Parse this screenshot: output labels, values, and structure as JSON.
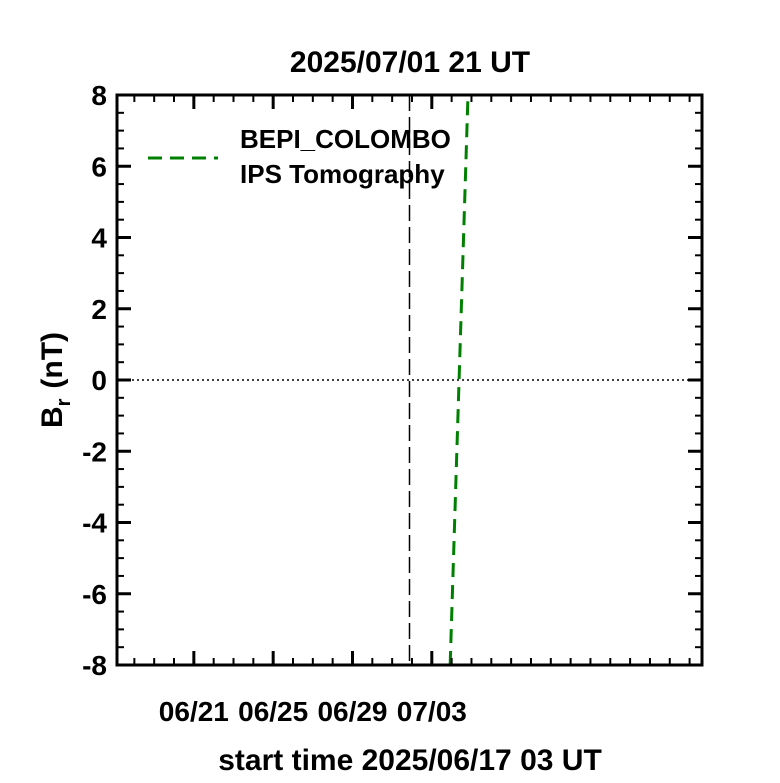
{
  "chart_data": {
    "type": "line",
    "title": "2025/07/01 21 UT",
    "xlabel": "start time 2025/06/17 03 UT",
    "ylabel_main": "B",
    "ylabel_sub": "r",
    "ylabel_unit": "(nT)",
    "x_unit": "days since 2025/06/17 03 UT",
    "xlim": [
      0,
      29.5
    ],
    "ylim": [
      -8,
      8
    ],
    "x_ticks": [
      {
        "x": 3.875,
        "label": "06/21"
      },
      {
        "x": 7.875,
        "label": "06/25"
      },
      {
        "x": 11.875,
        "label": "06/29"
      },
      {
        "x": 15.875,
        "label": "07/03"
      }
    ],
    "x_minor_step": 1,
    "y_ticks": [
      -8,
      -6,
      -4,
      -2,
      0,
      2,
      4,
      6,
      8
    ],
    "y_minor_step": 0.5,
    "current_time_marker_x": 14.75,
    "zero_line": true,
    "legend": {
      "placement": "top-left",
      "entries": [
        "BEPI_COLOMBO",
        "IPS Tomography"
      ]
    },
    "series": [
      {
        "name": "BEPI_COLOMBO IPS Tomography",
        "color": "#008000",
        "style": "dashed",
        "x": [
          16.8,
          17.7
        ],
        "y": [
          -8,
          8
        ]
      }
    ]
  }
}
